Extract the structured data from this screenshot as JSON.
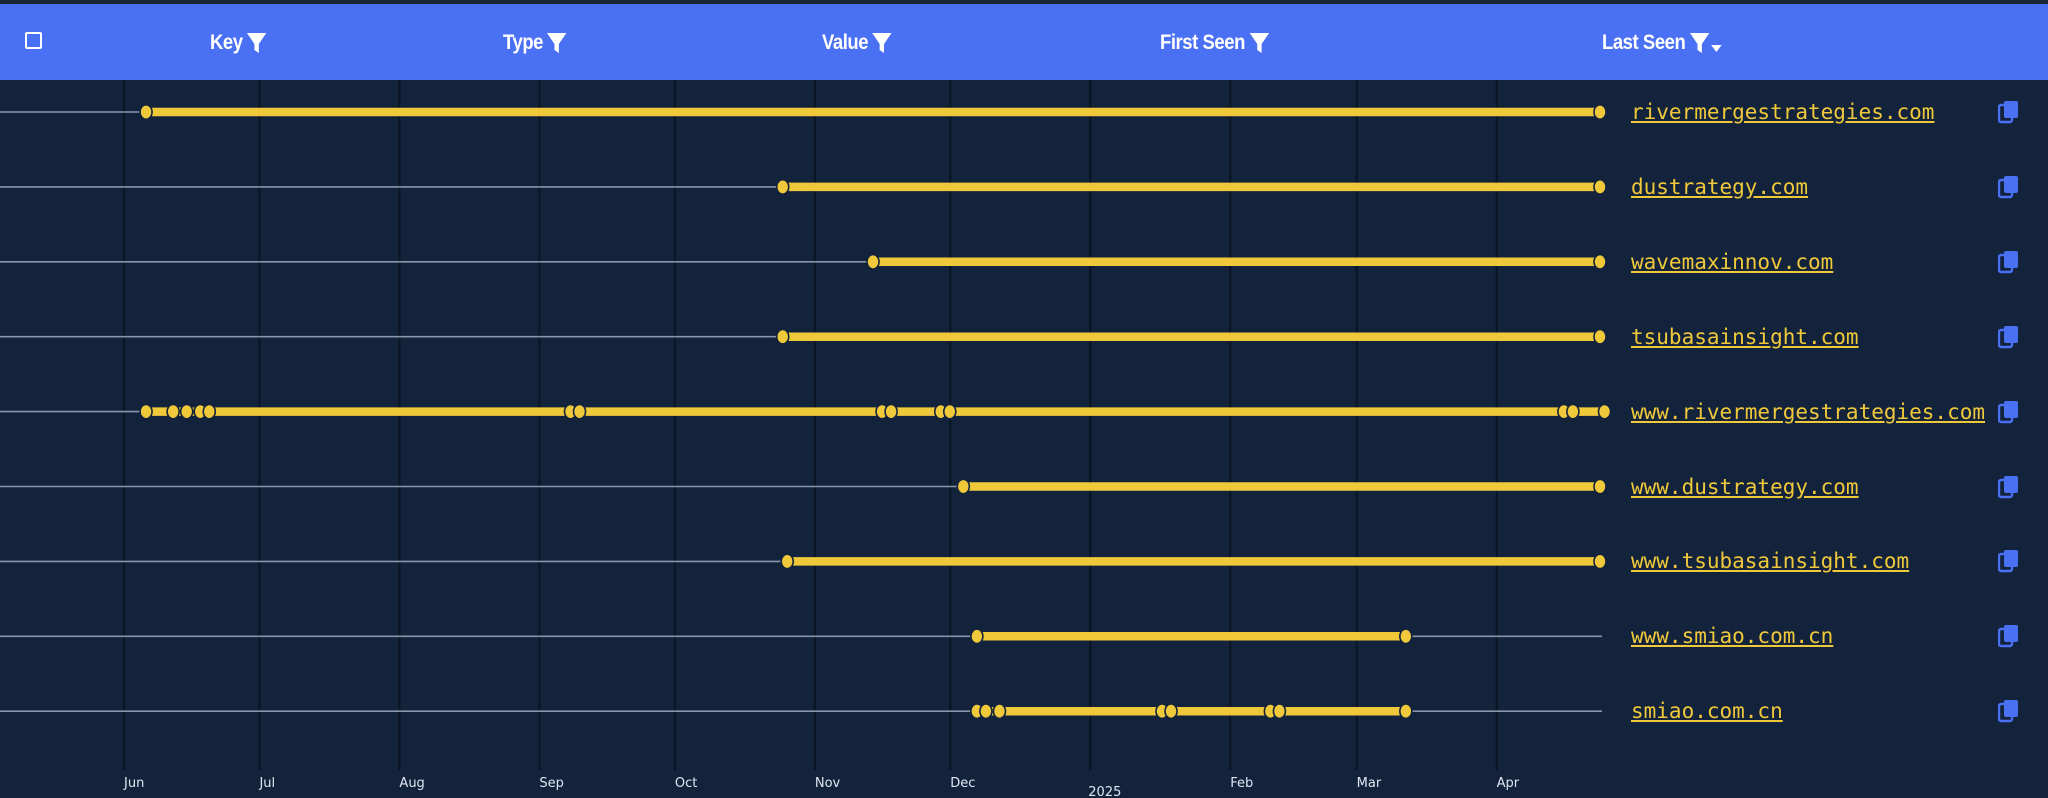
{
  "header": {
    "columns": [
      {
        "label": "Key",
        "left": 210
      },
      {
        "label": "Type",
        "left": 503
      },
      {
        "label": "Value",
        "left": 822
      },
      {
        "label": "First Seen",
        "left": 1160
      },
      {
        "label": "Last Seen",
        "left": 1602
      }
    ]
  },
  "colors": {
    "header_bg": "#4a70f4",
    "bg": "#13233c",
    "accent": "#f0c93a",
    "copy_icon": "#4a70f4"
  },
  "chart_data": {
    "type": "timeline",
    "x_type": "date",
    "xlim": [
      "2024-05-22",
      "2025-04-23"
    ],
    "ticks": [
      {
        "label": "Jun",
        "date": "2024-06-01"
      },
      {
        "label": "Jul",
        "date": "2024-07-01"
      },
      {
        "label": "Aug",
        "date": "2024-08-01"
      },
      {
        "label": "Sep",
        "date": "2024-09-01"
      },
      {
        "label": "Oct",
        "date": "2024-10-01"
      },
      {
        "label": "Nov",
        "date": "2024-11-01"
      },
      {
        "label": "Dec",
        "date": "2024-12-01"
      },
      {
        "label": "Feb",
        "date": "2025-02-01"
      },
      {
        "label": "Mar",
        "date": "2025-03-01"
      },
      {
        "label": "Apr",
        "date": "2025-04-01"
      }
    ],
    "year_label": {
      "label": "2025",
      "date": "2025-01-01"
    },
    "grid": true,
    "rows": [
      {
        "name": "rivermergestrategies.com",
        "first_seen": "2024-06-05",
        "last_seen": "2025-04-23",
        "observations": [
          "2024-06-05",
          "2025-04-23"
        ]
      },
      {
        "name": "dustrategy.com",
        "first_seen": "2024-10-24",
        "last_seen": "2025-04-23",
        "observations": [
          "2024-10-24",
          "2025-04-23"
        ]
      },
      {
        "name": "wavemaxinnov.com",
        "first_seen": "2024-11-13",
        "last_seen": "2025-04-23",
        "observations": [
          "2024-11-13",
          "2025-04-23"
        ]
      },
      {
        "name": "tsubasainsight.com",
        "first_seen": "2024-10-24",
        "last_seen": "2025-04-23",
        "observations": [
          "2024-10-24",
          "2025-04-23"
        ]
      },
      {
        "name": "www.rivermergestrategies.com",
        "first_seen": "2024-06-05",
        "last_seen": "2025-04-24",
        "observations": [
          "2024-06-05",
          "2024-06-11",
          "2024-06-14",
          "2024-06-17",
          "2024-06-19",
          "2024-09-07",
          "2024-09-09",
          "2024-11-15",
          "2024-11-17",
          "2024-11-28",
          "2024-11-30",
          "2025-04-15",
          "2025-04-17",
          "2025-04-24"
        ]
      },
      {
        "name": "www.dustrategy.com",
        "first_seen": "2024-12-03",
        "last_seen": "2025-04-23",
        "observations": [
          "2024-12-03",
          "2025-04-23"
        ]
      },
      {
        "name": "www.tsubasainsight.com",
        "first_seen": "2024-10-25",
        "last_seen": "2025-04-23",
        "observations": [
          "2024-10-25",
          "2025-04-23"
        ]
      },
      {
        "name": "www.smiao.com.cn",
        "first_seen": "2024-12-06",
        "last_seen": "2025-03-11",
        "observations": [
          "2024-12-06",
          "2025-03-11"
        ]
      },
      {
        "name": "smiao.com.cn",
        "first_seen": "2024-12-06",
        "last_seen": "2025-03-11",
        "observations": [
          "2024-12-06",
          "2024-12-08",
          "2024-12-11",
          "2025-01-16",
          "2025-01-18",
          "2025-02-09",
          "2025-02-11",
          "2025-03-11"
        ]
      }
    ]
  }
}
